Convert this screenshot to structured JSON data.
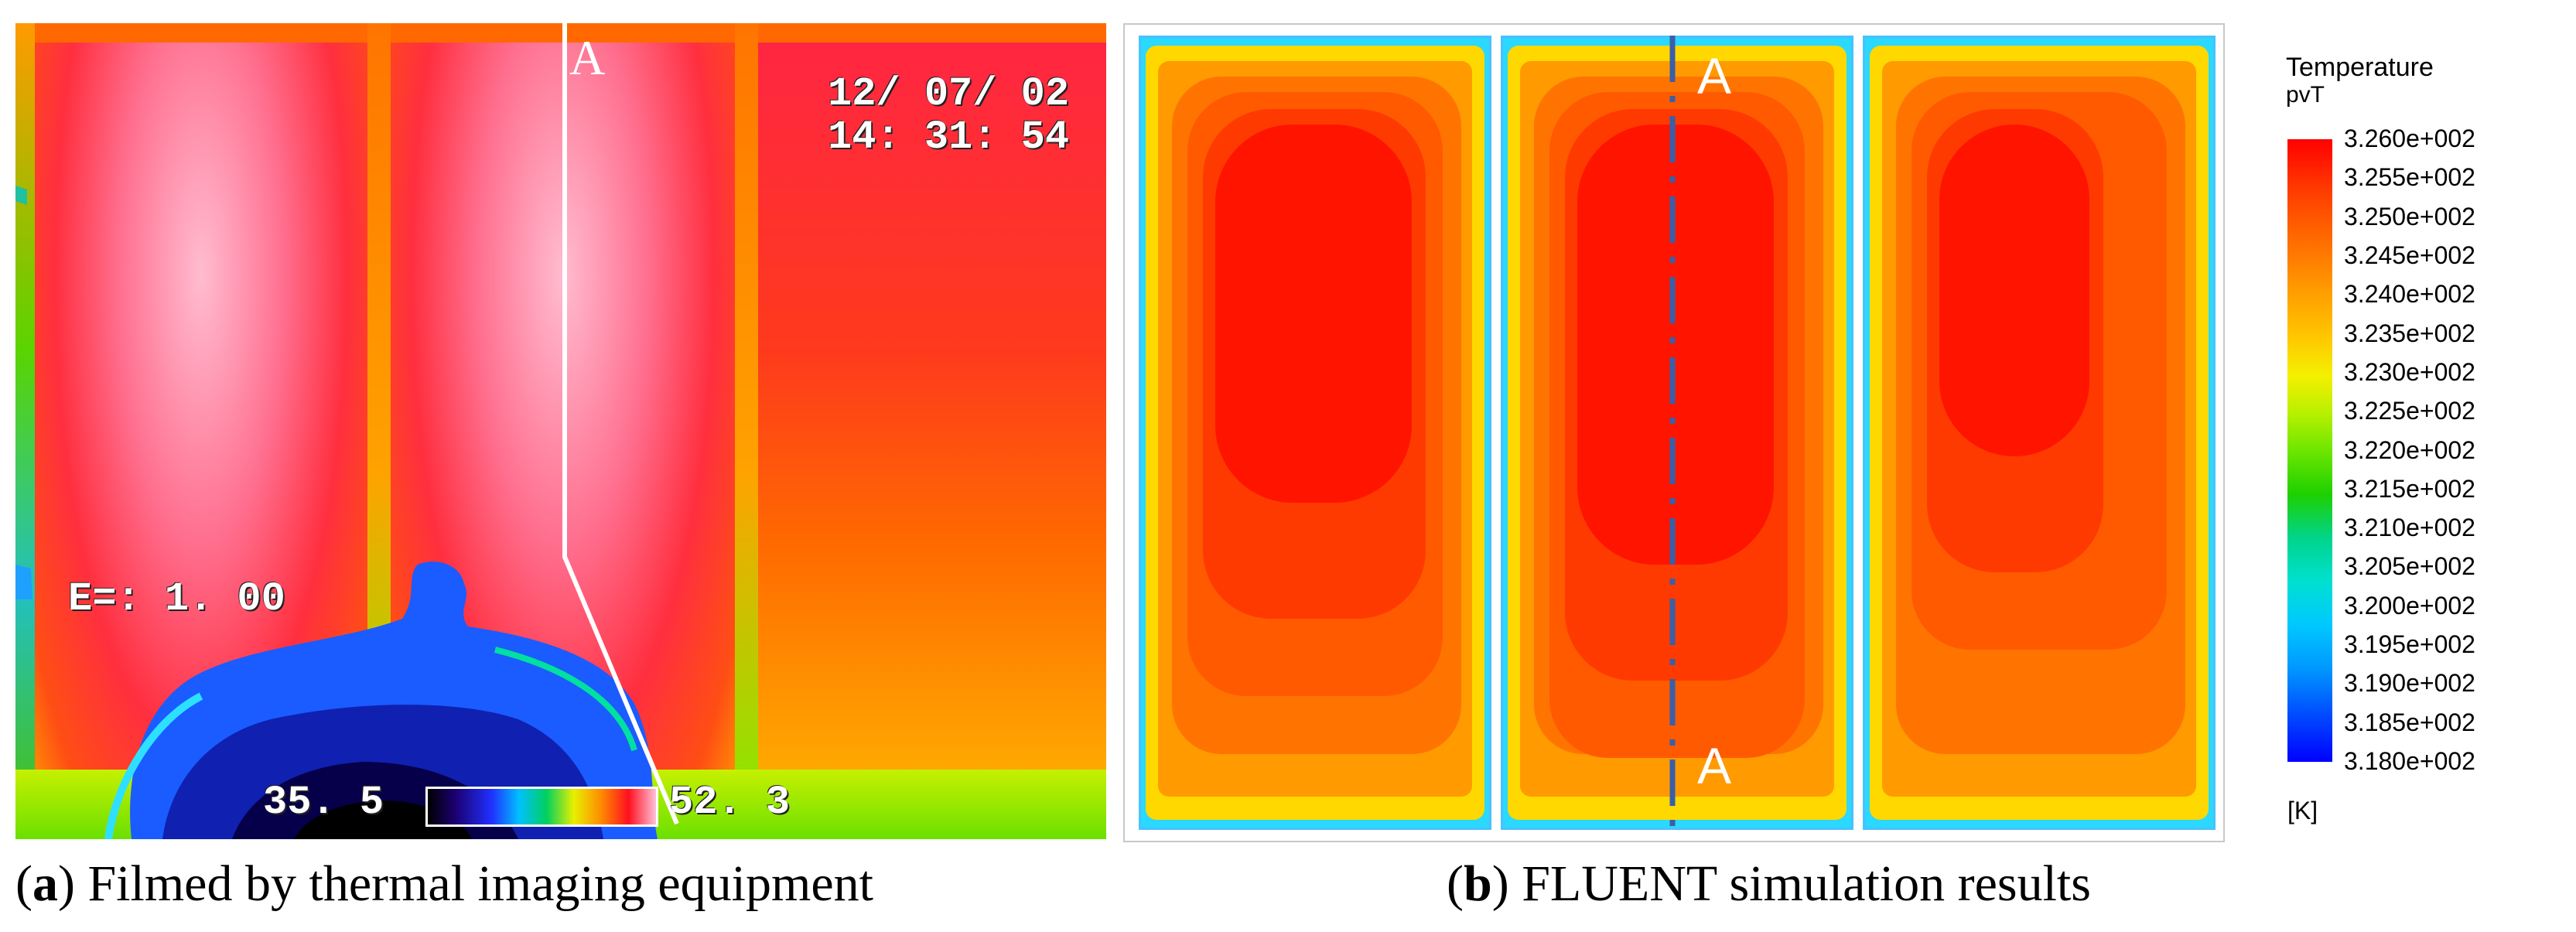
{
  "panel_a": {
    "date": "12/ 07/ 02",
    "time": "14: 31: 54",
    "emissivity": "E=: 1. 00",
    "scale_min": "35. 5",
    "scale_max": "52. 3",
    "section_mark": "A"
  },
  "panel_b": {
    "section_top": "A",
    "section_bottom": "A",
    "fill_colors": [
      "#ffd800",
      "#ff9a00",
      "#ff7400",
      "#ff5a00",
      "#ff3a00",
      "#ff1400"
    ]
  },
  "legend": {
    "title": "Temperature",
    "subtitle": "pvT",
    "unit": "[K]",
    "labels": [
      "3.260e+002",
      "3.255e+002",
      "3.250e+002",
      "3.245e+002",
      "3.240e+002",
      "3.235e+002",
      "3.230e+002",
      "3.225e+002",
      "3.220e+002",
      "3.215e+002",
      "3.210e+002",
      "3.205e+002",
      "3.200e+002",
      "3.195e+002",
      "3.190e+002",
      "3.185e+002",
      "3.180e+002"
    ]
  },
  "captions": {
    "a_letter": "a",
    "a_text": " Filmed by thermal imaging equipment",
    "b_letter": "b",
    "b_text": " FLUENT simulation results"
  }
}
